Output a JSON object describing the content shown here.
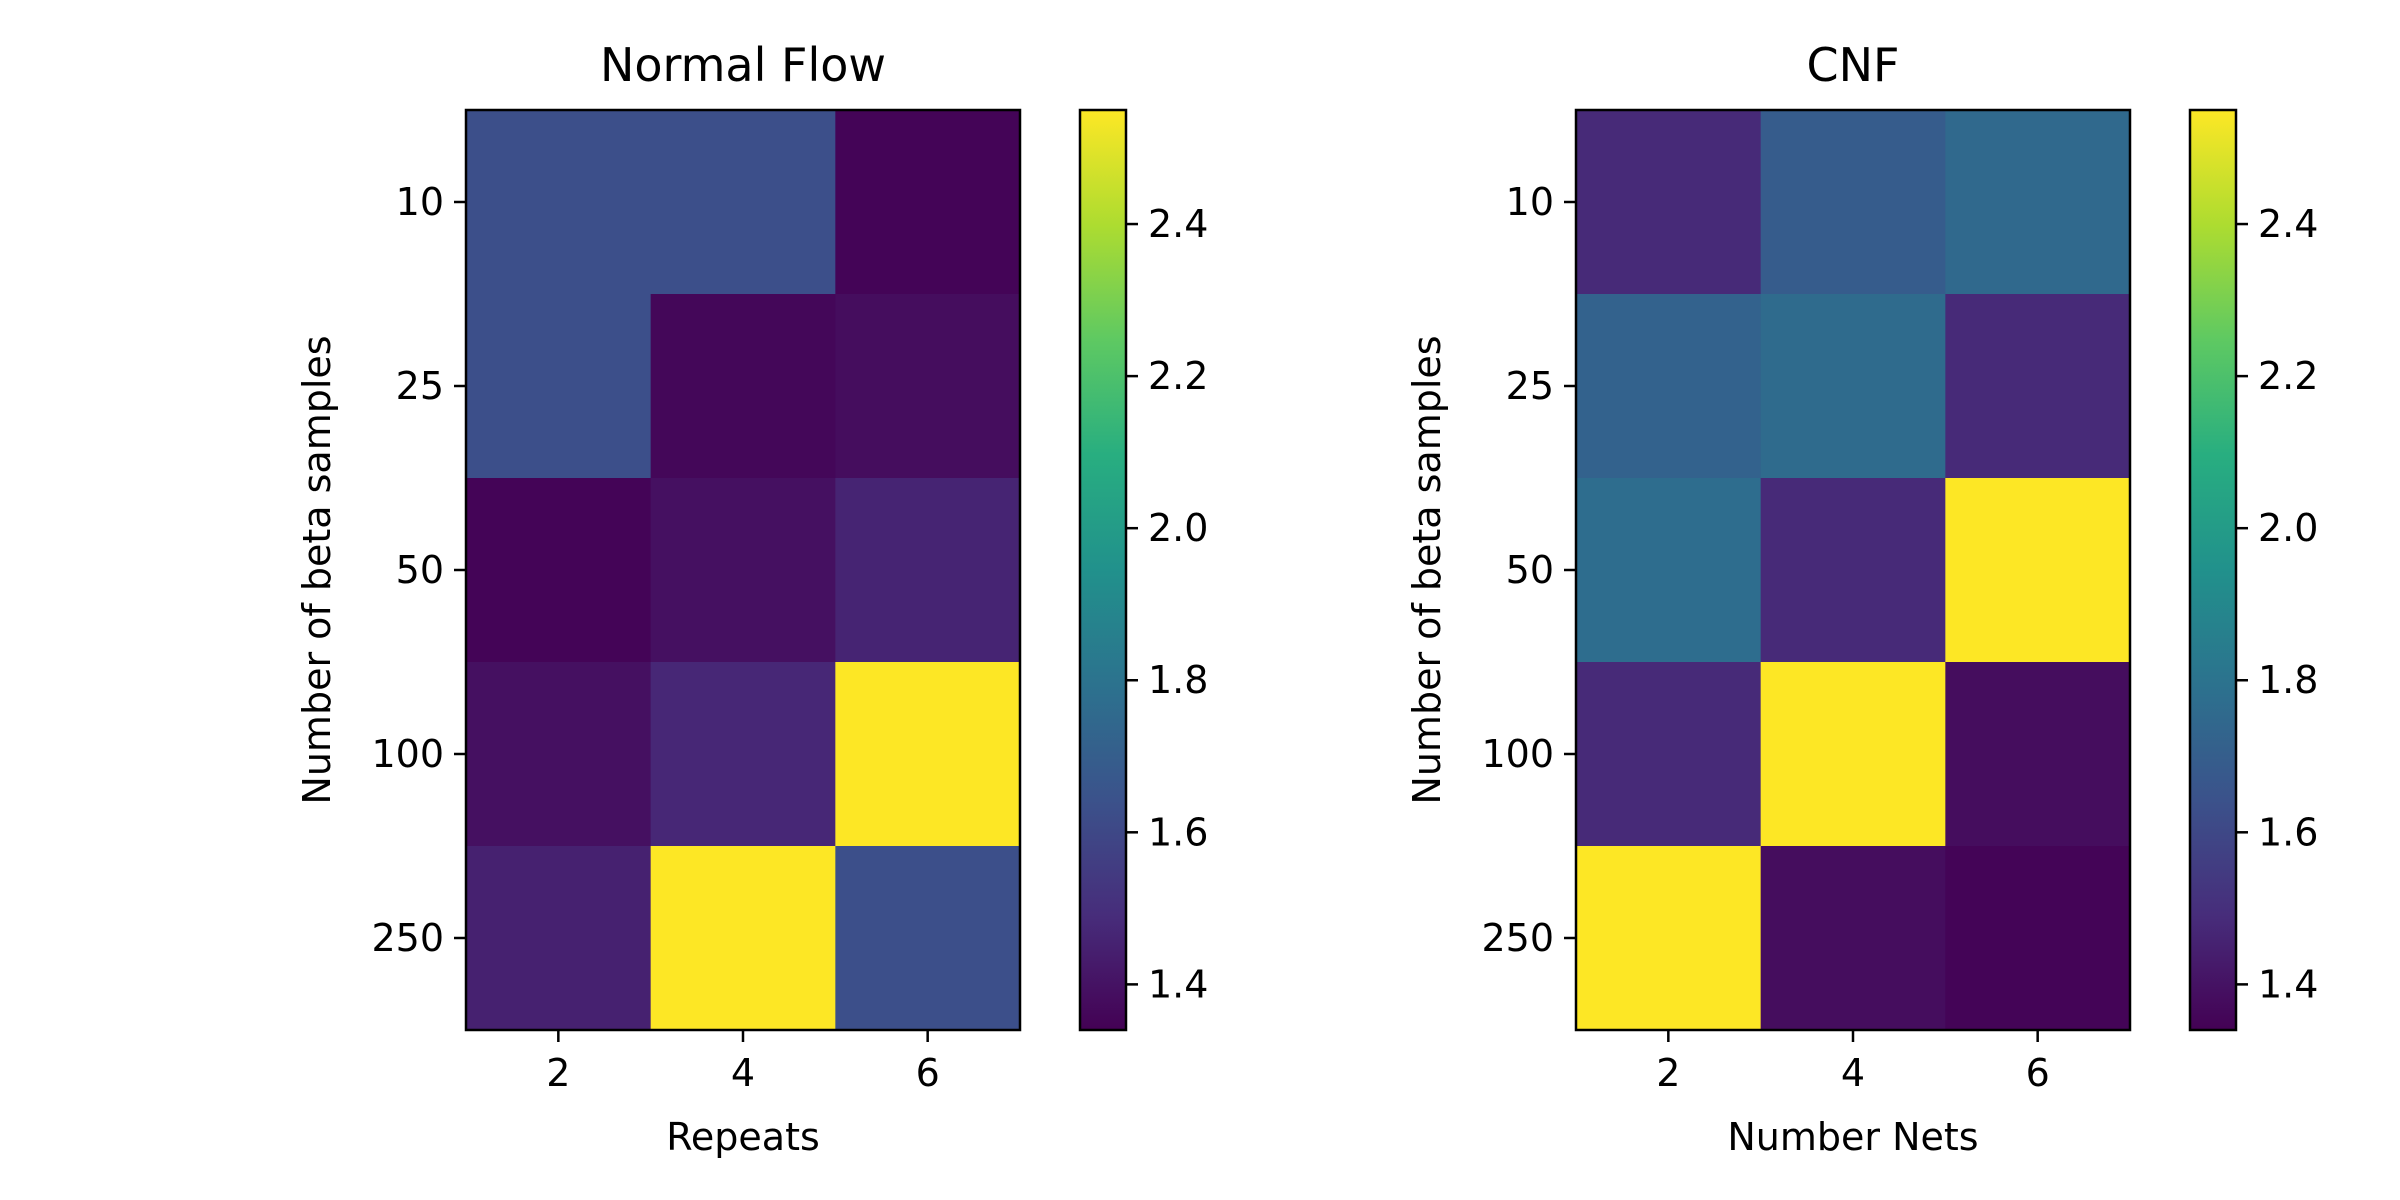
{
  "chart_data": [
    {
      "type": "heatmap",
      "title": "Normal Flow",
      "xlabel": "Repeats",
      "ylabel": "Number of beta samples",
      "x": [
        2,
        4,
        6
      ],
      "y": [
        10,
        25,
        50,
        100,
        250
      ],
      "values": [
        [
          1.63,
          1.63,
          1.35
        ],
        [
          1.63,
          1.36,
          1.38
        ],
        [
          1.35,
          1.39,
          1.46
        ],
        [
          1.39,
          1.47,
          2.55
        ],
        [
          1.45,
          2.55,
          1.63
        ]
      ],
      "colorbar": {
        "ticks": [
          1.4,
          1.6,
          1.8,
          2.0,
          2.2,
          2.4
        ],
        "vmin": 1.34,
        "vmax": 2.55,
        "colormap": "viridis"
      }
    },
    {
      "type": "heatmap",
      "title": "CNF",
      "xlabel": "Number Nets",
      "ylabel": "Number of beta samples",
      "x": [
        2,
        4,
        6
      ],
      "y": [
        10,
        25,
        50,
        100,
        250
      ],
      "values": [
        [
          1.48,
          1.69,
          1.75
        ],
        [
          1.72,
          1.76,
          1.48
        ],
        [
          1.77,
          1.48,
          2.55
        ],
        [
          1.48,
          2.55,
          1.38
        ],
        [
          2.55,
          1.38,
          1.35
        ]
      ],
      "colorbar": {
        "ticks": [
          1.4,
          1.6,
          1.8,
          2.0,
          2.2,
          2.4
        ],
        "vmin": 1.34,
        "vmax": 2.55,
        "colormap": "viridis"
      }
    }
  ]
}
